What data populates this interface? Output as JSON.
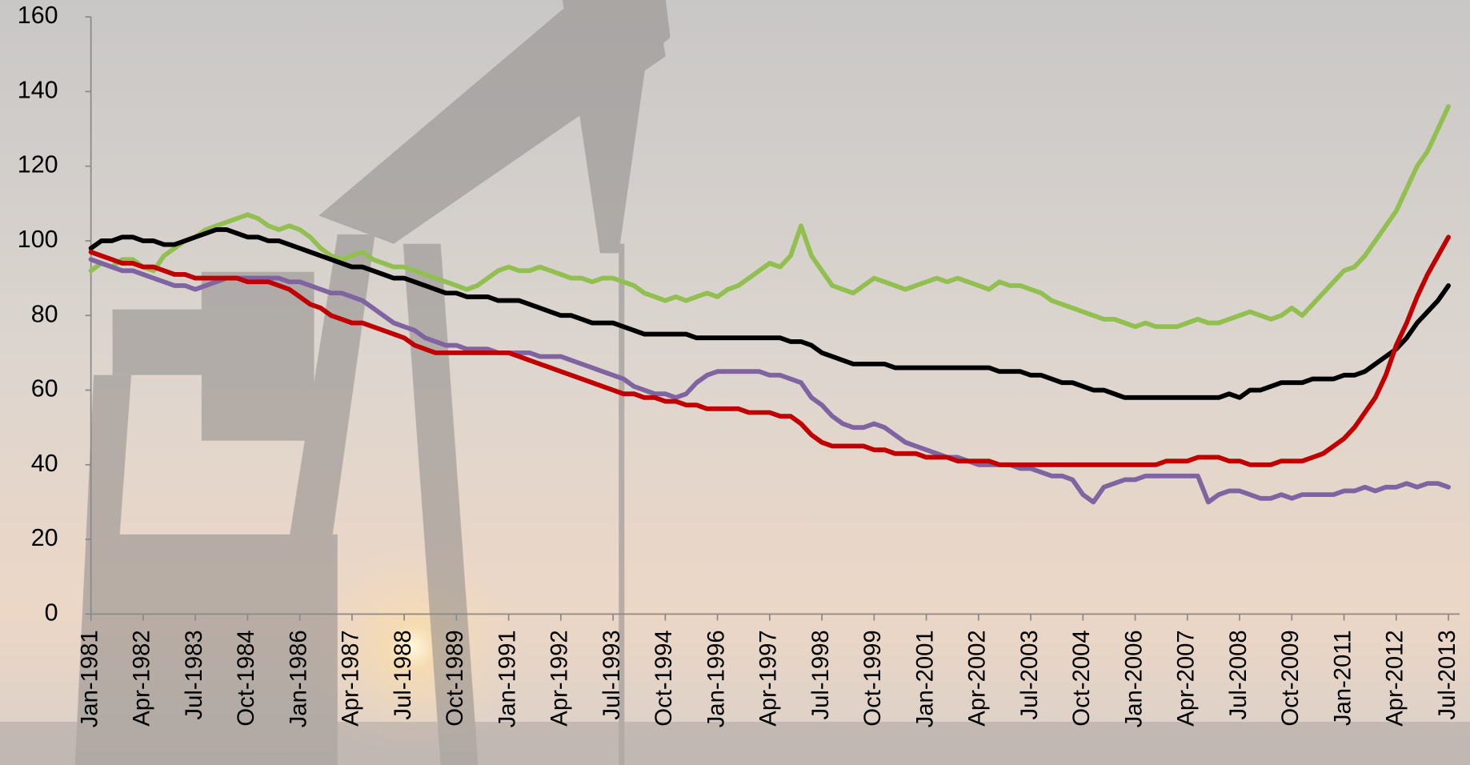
{
  "chart_data": {
    "type": "line",
    "categories": [
      "Jan-1981",
      null,
      null,
      null,
      null,
      "Apr-1982",
      null,
      null,
      null,
      null,
      "Jul-1983",
      null,
      null,
      null,
      null,
      "Oct-1984",
      null,
      null,
      null,
      null,
      "Jan-1986",
      null,
      null,
      null,
      null,
      "Apr-1987",
      null,
      null,
      null,
      null,
      "Jul-1988",
      null,
      null,
      null,
      null,
      "Oct-1989",
      null,
      null,
      null,
      null,
      "Jan-1991",
      null,
      null,
      null,
      null,
      "Apr-1992",
      null,
      null,
      null,
      null,
      "Jul-1993",
      null,
      null,
      null,
      null,
      "Oct-1994",
      null,
      null,
      null,
      null,
      "Jan-1996",
      null,
      null,
      null,
      null,
      "Apr-1997",
      null,
      null,
      null,
      null,
      "Jul-1998",
      null,
      null,
      null,
      null,
      "Oct-1999",
      null,
      null,
      null,
      null,
      "Jan-2001",
      null,
      null,
      null,
      null,
      "Apr-2002",
      null,
      null,
      null,
      null,
      "Jul-2003",
      null,
      null,
      null,
      null,
      "Oct-2004",
      null,
      null,
      null,
      null,
      "Jan-2006",
      null,
      null,
      null,
      null,
      "Apr-2007",
      null,
      null,
      null,
      null,
      "Jul-2008",
      null,
      null,
      null,
      null,
      "Oct-2009",
      null,
      null,
      null,
      null,
      "Jan-2011",
      null,
      null,
      null,
      null,
      "Apr-2012",
      null,
      null,
      null,
      null,
      "Jul-2013"
    ],
    "series": [
      {
        "color": "#92c050",
        "values": [
          92,
          94,
          93,
          95,
          95,
          93,
          92,
          96,
          98,
          100,
          101,
          103,
          104,
          105,
          106,
          107,
          106,
          104,
          103,
          104,
          103,
          101,
          98,
          96,
          95,
          96,
          97,
          95,
          94,
          93,
          93,
          92,
          91,
          90,
          89,
          88,
          87,
          88,
          90,
          92,
          93,
          92,
          92,
          93,
          92,
          91,
          90,
          90,
          89,
          90,
          90,
          89,
          88,
          86,
          85,
          84,
          85,
          84,
          85,
          86,
          85,
          87,
          88,
          90,
          92,
          94,
          93,
          96,
          104,
          96,
          92,
          88,
          87,
          86,
          88,
          90,
          89,
          88,
          87,
          88,
          89,
          90,
          89,
          90,
          89,
          88,
          87,
          89,
          88,
          88,
          87,
          86,
          84,
          83,
          82,
          81,
          80,
          79,
          79,
          78,
          77,
          78,
          77,
          77,
          77,
          78,
          79,
          78,
          78,
          79,
          80,
          81,
          80,
          79,
          80,
          82,
          80,
          83,
          86,
          89,
          92,
          93,
          96,
          100,
          104,
          108,
          114,
          120,
          124,
          130,
          136
        ]
      },
      {
        "color": "#000000",
        "values": [
          98,
          100,
          100,
          101,
          101,
          100,
          100,
          99,
          99,
          100,
          101,
          102,
          103,
          103,
          102,
          101,
          101,
          100,
          100,
          99,
          98,
          97,
          96,
          95,
          94,
          93,
          93,
          92,
          91,
          90,
          90,
          89,
          88,
          87,
          86,
          86,
          85,
          85,
          85,
          84,
          84,
          84,
          83,
          82,
          81,
          80,
          80,
          79,
          78,
          78,
          78,
          77,
          76,
          75,
          75,
          75,
          75,
          75,
          74,
          74,
          74,
          74,
          74,
          74,
          74,
          74,
          74,
          73,
          73,
          72,
          70,
          69,
          68,
          67,
          67,
          67,
          67,
          66,
          66,
          66,
          66,
          66,
          66,
          66,
          66,
          66,
          66,
          65,
          65,
          65,
          64,
          64,
          63,
          62,
          62,
          61,
          60,
          60,
          59,
          58,
          58,
          58,
          58,
          58,
          58,
          58,
          58,
          58,
          58,
          59,
          58,
          60,
          60,
          61,
          62,
          62,
          62,
          63,
          63,
          63,
          64,
          64,
          65,
          67,
          69,
          71,
          74,
          78,
          81,
          84,
          88
        ]
      },
      {
        "color": "#8064a2",
        "values": [
          95,
          94,
          93,
          92,
          92,
          91,
          90,
          89,
          88,
          88,
          87,
          88,
          89,
          90,
          90,
          90,
          90,
          90,
          90,
          89,
          89,
          88,
          87,
          86,
          86,
          85,
          84,
          82,
          80,
          78,
          77,
          76,
          74,
          73,
          72,
          72,
          71,
          71,
          71,
          70,
          70,
          70,
          70,
          69,
          69,
          69,
          68,
          67,
          66,
          65,
          64,
          63,
          61,
          60,
          59,
          59,
          58,
          59,
          62,
          64,
          65,
          65,
          65,
          65,
          65,
          64,
          64,
          63,
          62,
          58,
          56,
          53,
          51,
          50,
          50,
          51,
          50,
          48,
          46,
          45,
          44,
          43,
          42,
          42,
          41,
          40,
          40,
          40,
          40,
          39,
          39,
          38,
          37,
          37,
          36,
          32,
          30,
          34,
          35,
          36,
          36,
          37,
          37,
          37,
          37,
          37,
          37,
          30,
          32,
          33,
          33,
          32,
          31,
          31,
          32,
          31,
          32,
          32,
          32,
          32,
          33,
          33,
          34,
          33,
          34,
          34,
          35,
          34,
          35,
          35,
          34
        ]
      },
      {
        "color": "#c00000",
        "values": [
          97,
          96,
          95,
          94,
          94,
          93,
          93,
          92,
          91,
          91,
          90,
          90,
          90,
          90,
          90,
          89,
          89,
          89,
          88,
          87,
          85,
          83,
          82,
          80,
          79,
          78,
          78,
          77,
          76,
          75,
          74,
          72,
          71,
          70,
          70,
          70,
          70,
          70,
          70,
          70,
          70,
          69,
          68,
          67,
          66,
          65,
          64,
          63,
          62,
          61,
          60,
          59,
          59,
          58,
          58,
          57,
          57,
          56,
          56,
          55,
          55,
          55,
          55,
          54,
          54,
          54,
          53,
          53,
          51,
          48,
          46,
          45,
          45,
          45,
          45,
          44,
          44,
          43,
          43,
          43,
          42,
          42,
          42,
          41,
          41,
          41,
          41,
          40,
          40,
          40,
          40,
          40,
          40,
          40,
          40,
          40,
          40,
          40,
          40,
          40,
          40,
          40,
          40,
          41,
          41,
          41,
          42,
          42,
          42,
          41,
          41,
          40,
          40,
          40,
          41,
          41,
          41,
          42,
          43,
          45,
          47,
          50,
          54,
          58,
          64,
          72,
          78,
          85,
          91,
          96,
          101
        ]
      }
    ],
    "ylim": [
      0,
      160
    ],
    "yticks": [
      0,
      20,
      40,
      60,
      80,
      100,
      120,
      140,
      160
    ],
    "grid": false
  }
}
